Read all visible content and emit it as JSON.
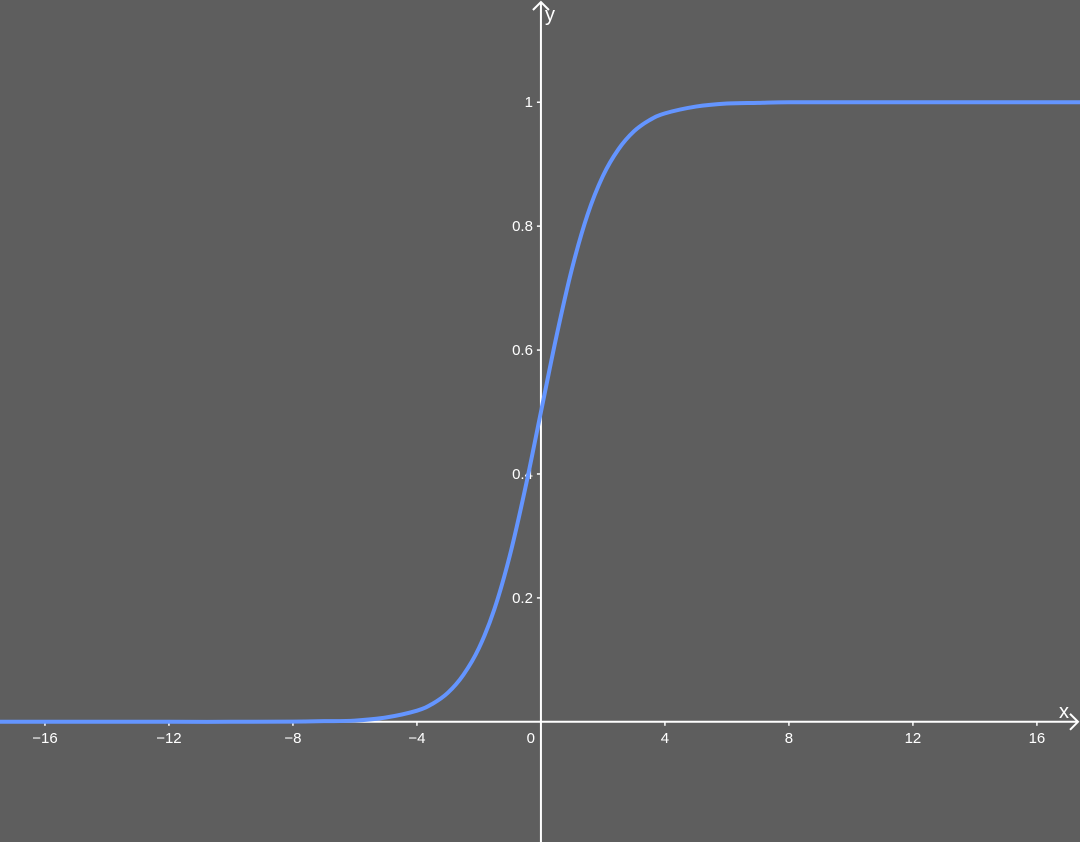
{
  "chart_data": {
    "type": "line",
    "title": "",
    "xlabel": "x",
    "ylabel": "y",
    "xlim": [
      -17.45,
      17.39
    ],
    "ylim": [
      -0.194,
      1.165
    ],
    "grid": false,
    "x_ticks": [
      -16,
      -12,
      -8,
      -4,
      0,
      4,
      8,
      12,
      16
    ],
    "x_tick_labels": [
      "−16",
      "−12",
      "−8",
      "−4",
      "0",
      "4",
      "8",
      "12",
      "16"
    ],
    "y_ticks": [
      0.2,
      0.4,
      0.6,
      0.8,
      1
    ],
    "y_tick_labels": [
      "0.2",
      "0.4",
      "0.6",
      "0.8",
      "1"
    ],
    "colors": {
      "background": "#5e5e5e",
      "axes": "#ffffff",
      "curve": "#6495ff"
    },
    "series": [
      {
        "x": [
          -17.5,
          -16,
          -14,
          -12,
          -10,
          -8,
          -7,
          -6,
          -5,
          -4,
          -3.5,
          -3,
          -2.5,
          -2,
          -1.5,
          -1,
          -0.5,
          0,
          0.5,
          1,
          1.5,
          2,
          2.5,
          3,
          3.5,
          4,
          5,
          6,
          7,
          8,
          10,
          12,
          14,
          16,
          17.5
        ],
        "y": [
          0,
          0,
          0,
          0,
          0,
          0.0003,
          0.001,
          0.002,
          0.007,
          0.018,
          0.029,
          0.047,
          0.076,
          0.119,
          0.182,
          0.269,
          0.378,
          0.5,
          0.622,
          0.731,
          0.818,
          0.881,
          0.924,
          0.953,
          0.971,
          0.982,
          0.993,
          0.998,
          0.999,
          1,
          1,
          1,
          1,
          1,
          1
        ]
      }
    ]
  }
}
